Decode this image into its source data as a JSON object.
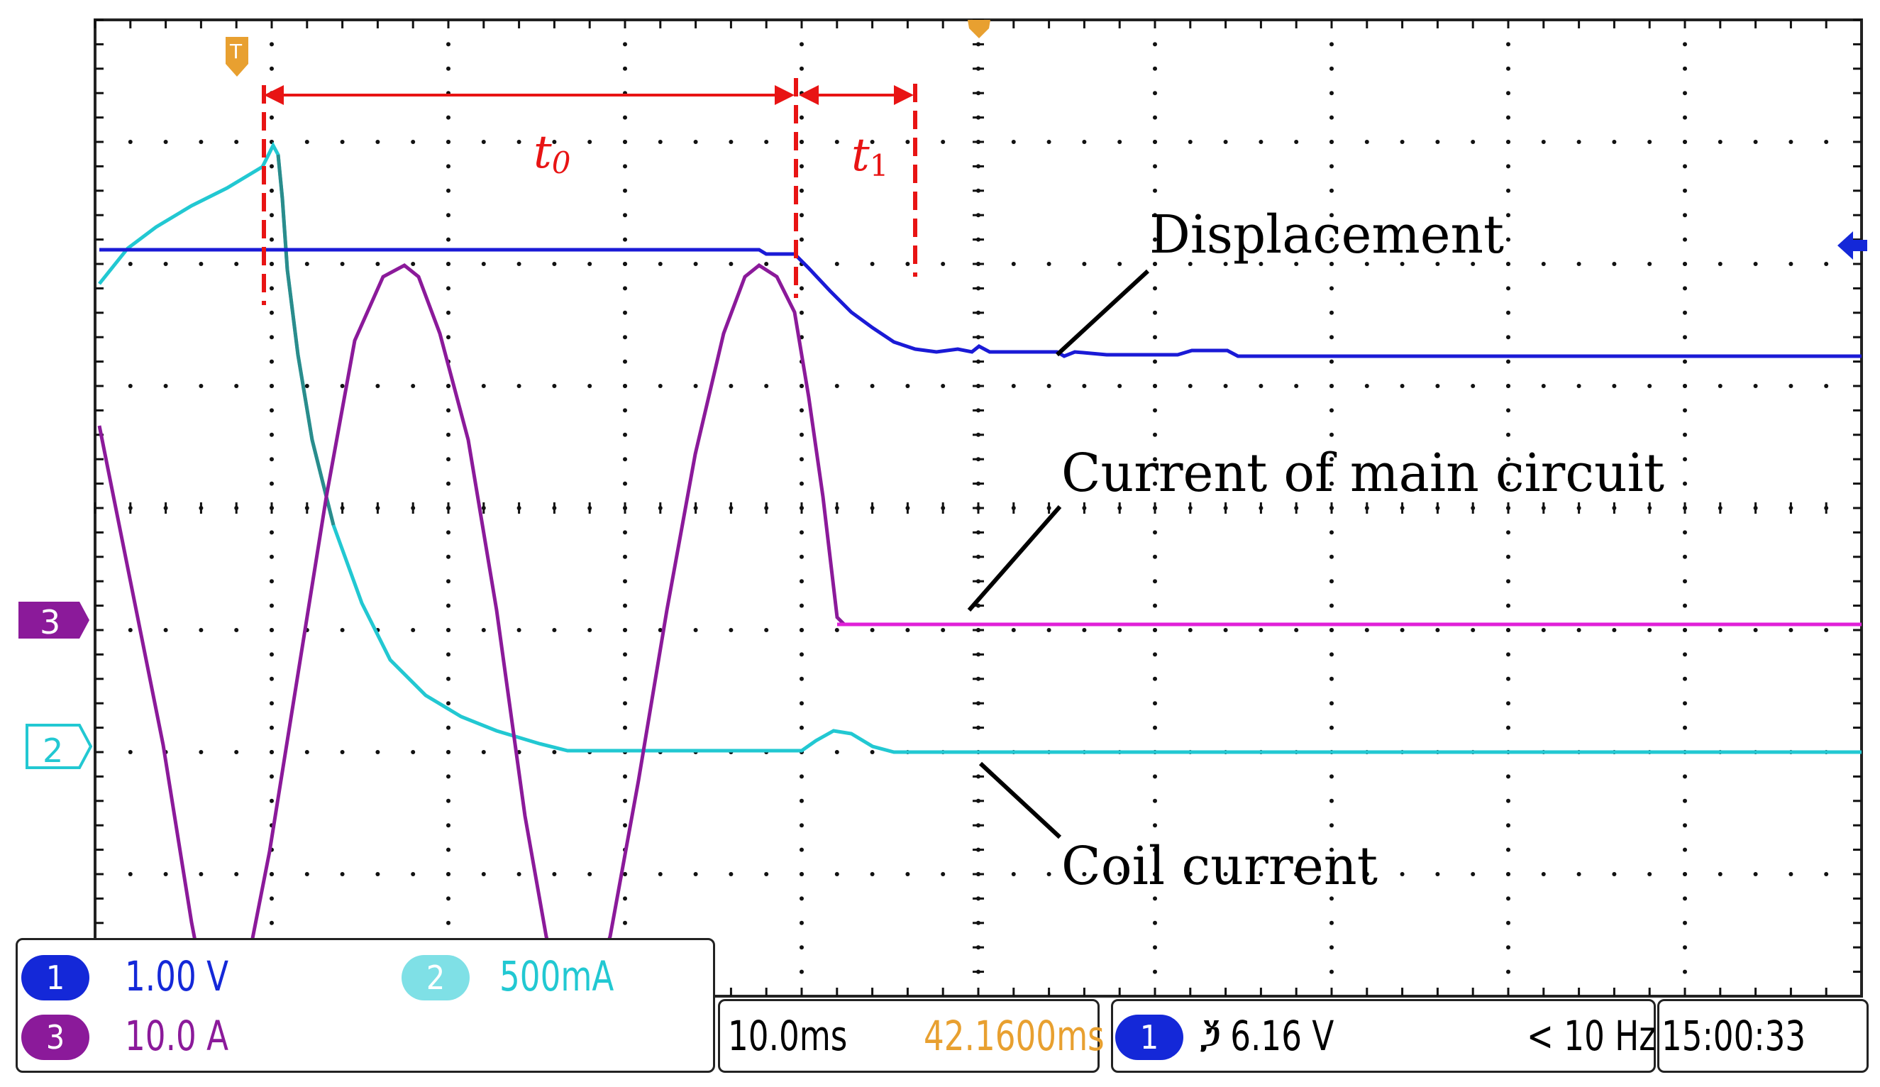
{
  "annotations": {
    "t0": {
      "base": "t",
      "sub": "0"
    },
    "t1": {
      "base": "t",
      "sub": "1"
    },
    "labels": {
      "displacement": "Displacement",
      "main_current": "Current of main circuit",
      "coil_current": "Coil current"
    }
  },
  "channel_markers": {
    "ch3": "3",
    "ch2": "2"
  },
  "channels": [
    {
      "id": "1",
      "scale": "1.00 V",
      "color": "#1a1ad6",
      "badge_color": "#1428d8"
    },
    {
      "id": "2",
      "scale": "500mA",
      "color": "#22c8d2",
      "badge_color": "#7fe0e6"
    },
    {
      "id": "3",
      "scale": "10.0 A",
      "color": "#8b1a9a",
      "badge_color": "#8b1a9a"
    }
  ],
  "timebase": {
    "per_div": "10.0ms",
    "position": "42.1600ms"
  },
  "trigger": {
    "source": "1",
    "slope_level": "ⷛ 6.16 V",
    "frequency": "< 10 Hz"
  },
  "clock": "15:00:33",
  "colors": {
    "displacement": "#1a1ad6",
    "main_current": "#8b1a9a",
    "main_current_after": "#e020d8",
    "coil_current": "#22c8d2",
    "annotation": "#e81414",
    "timestamp": "#e8a030",
    "trigger_marker": "#e8a030"
  },
  "icons": {
    "trigger_time_marker": "trigger-t-marker-icon",
    "trigger_level_arrow": "trigger-level-arrow-icon"
  }
}
